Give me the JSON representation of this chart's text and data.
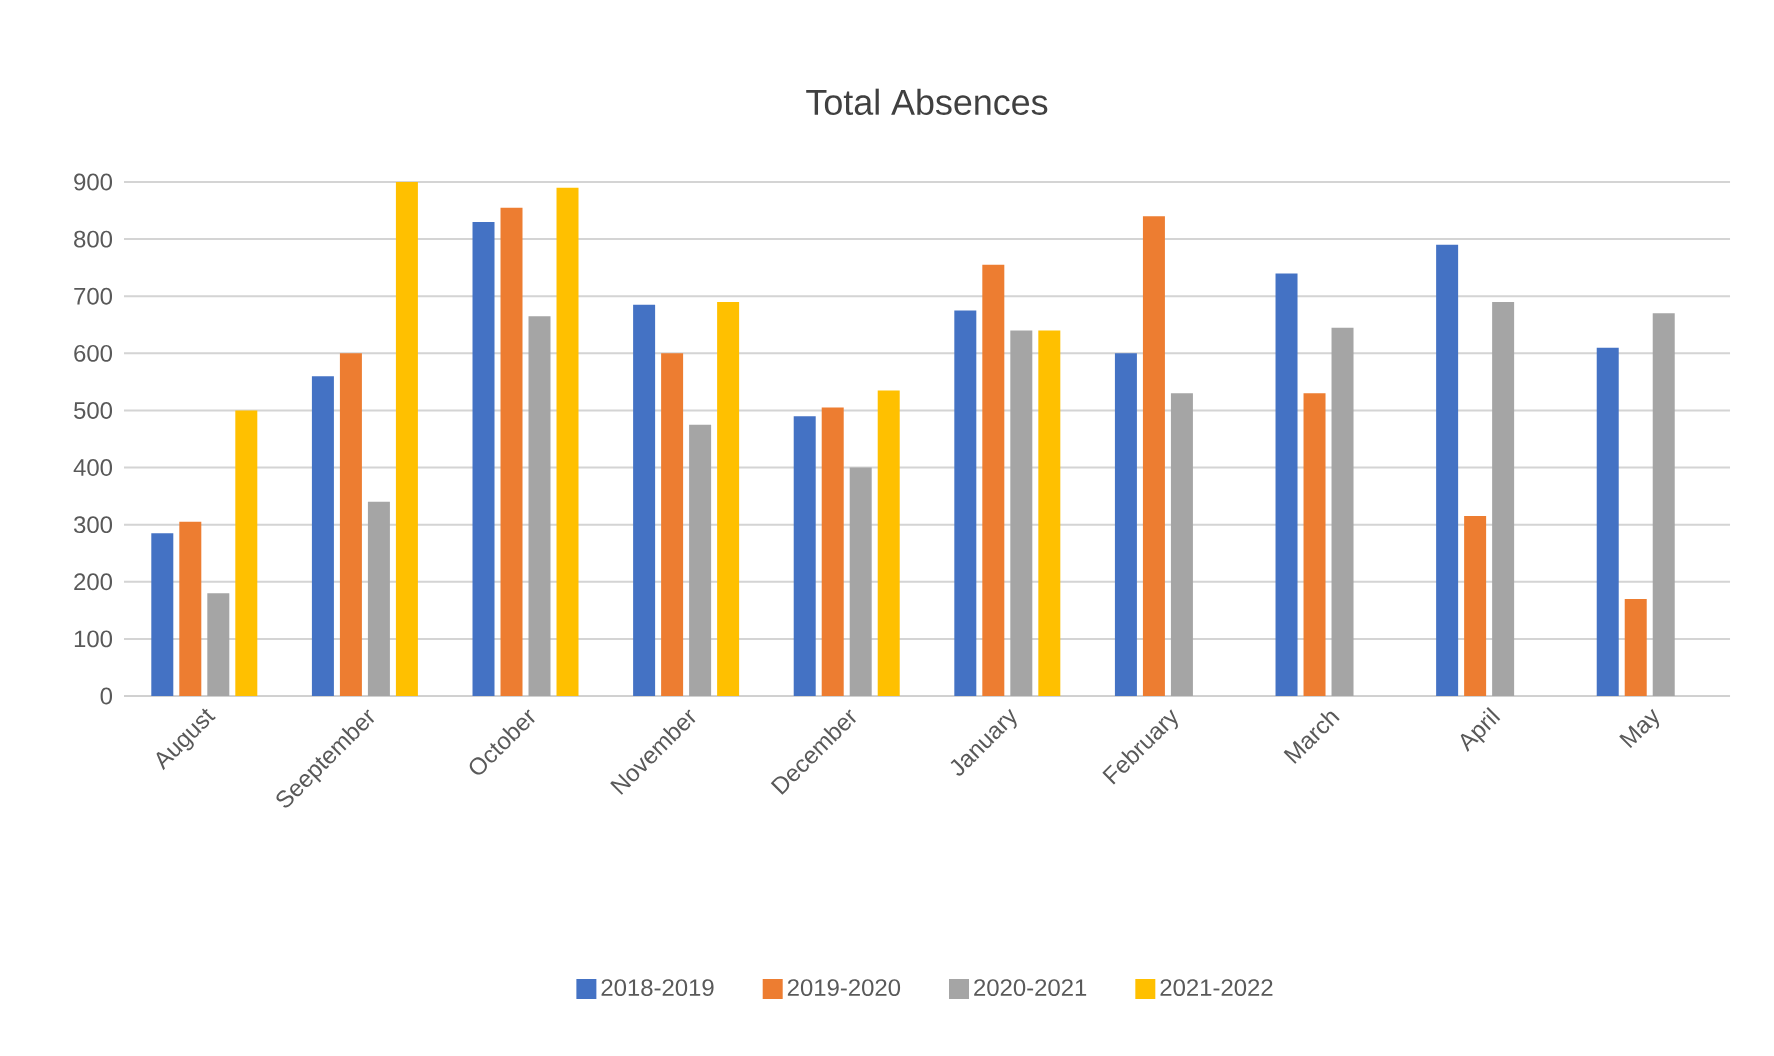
{
  "chart_data": {
    "type": "bar",
    "title": "Total Absences",
    "categories": [
      "August",
      "Seeptember",
      "October",
      "November",
      "December",
      "January",
      "February",
      "March",
      "April",
      "May"
    ],
    "series": [
      {
        "name": "2018-2019",
        "color": "#4472c4",
        "values": [
          285,
          560,
          830,
          685,
          490,
          675,
          600,
          740,
          790,
          610
        ]
      },
      {
        "name": "2019-2020",
        "color": "#ed7d31",
        "values": [
          305,
          600,
          855,
          600,
          505,
          755,
          840,
          530,
          315,
          170
        ]
      },
      {
        "name": "2020-2021",
        "color": "#a5a5a5",
        "values": [
          180,
          340,
          665,
          475,
          400,
          640,
          530,
          645,
          690,
          670
        ]
      },
      {
        "name": "2021-2022",
        "color": "#ffc000",
        "values": [
          500,
          900,
          890,
          690,
          535,
          640,
          null,
          null,
          null,
          null
        ]
      }
    ],
    "ylim": [
      0,
      900
    ],
    "yticks": [
      0,
      100,
      200,
      300,
      400,
      500,
      600,
      700,
      800,
      900
    ],
    "grid": "y",
    "legend": "bottom"
  }
}
